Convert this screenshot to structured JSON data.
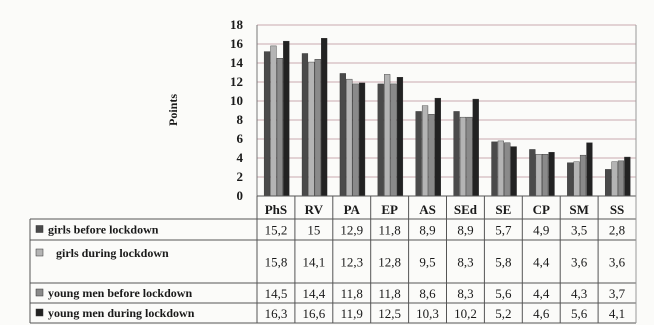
{
  "chart_data": {
    "type": "bar",
    "title": "",
    "xlabel": "",
    "ylabel": "Points",
    "ylim": [
      0,
      18
    ],
    "yticks": [
      0,
      2,
      4,
      6,
      8,
      10,
      12,
      14,
      16,
      18
    ],
    "grid": true,
    "legend": "data-table-left",
    "categories": [
      "PhS",
      "RV",
      "PA",
      "EP",
      "AS",
      "SEd",
      "SE",
      "CP",
      "SM",
      "SS"
    ],
    "series": [
      {
        "name": "girls before lockdown",
        "color": "#4a4a4a",
        "values": [
          15.2,
          15,
          12.9,
          11.8,
          8.9,
          8.9,
          5.7,
          4.9,
          3.5,
          2.8
        ],
        "labels": [
          "15,2",
          "15",
          "12,9",
          "11,8",
          "8,9",
          "8,9",
          "5,7",
          "4,9",
          "3,5",
          "2,8"
        ]
      },
      {
        "name": "girls during lockdown",
        "color": "#b4b4b4",
        "values": [
          15.8,
          14.1,
          12.3,
          12.8,
          9.5,
          8.3,
          5.8,
          4.4,
          3.6,
          3.6
        ],
        "labels": [
          "15,8",
          "14,1",
          "12,3",
          "12,8",
          "9,5",
          "8,3",
          "5,8",
          "4,4",
          "3,6",
          "3,6"
        ]
      },
      {
        "name": "young men before lockdown",
        "color": "#8a8a8a",
        "values": [
          14.5,
          14.4,
          11.8,
          11.8,
          8.6,
          8.3,
          5.6,
          4.4,
          4.3,
          3.7
        ],
        "labels": [
          "14,5",
          "14,4",
          "11,8",
          "11,8",
          "8,6",
          "8,3",
          "5,6",
          "4,4",
          "4,3",
          "3,7"
        ]
      },
      {
        "name": "young men during lockdown",
        "color": "#222222",
        "values": [
          16.3,
          16.6,
          11.9,
          12.5,
          10.3,
          10.2,
          5.2,
          4.6,
          5.6,
          4.1
        ],
        "labels": [
          "16,3",
          "16,6",
          "11,9",
          "12,5",
          "10,3",
          "10,2",
          "5,2",
          "4,6",
          "5,6",
          "4,1"
        ]
      }
    ]
  }
}
